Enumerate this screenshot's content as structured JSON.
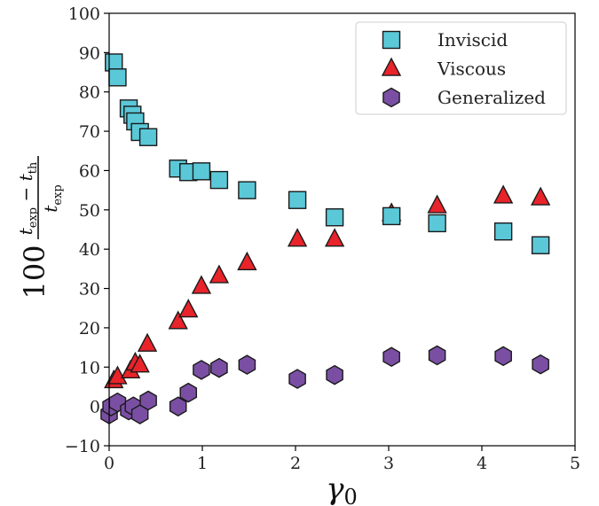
{
  "chart_data": {
    "type": "scatter",
    "xlabel": "γ0",
    "ylabel": "100 (t_exp − t_th) / t_exp",
    "xlim": [
      0,
      5
    ],
    "ylim": [
      -10,
      100
    ],
    "xticks": [
      "0",
      "1",
      "2",
      "3",
      "4",
      "5"
    ],
    "yticks": [
      "−10",
      "0",
      "10",
      "20",
      "30",
      "40",
      "50",
      "60",
      "70",
      "80",
      "90",
      "100"
    ],
    "grid": false,
    "legend_position": "top-right",
    "series": [
      {
        "name": "Inviscid",
        "marker": "square",
        "color": "#5BC8D8",
        "points": [
          [
            0.05,
            87.5
          ],
          [
            0.09,
            83.7
          ],
          [
            0.21,
            75.8
          ],
          [
            0.25,
            74.2
          ],
          [
            0.28,
            72.5
          ],
          [
            0.33,
            69.8
          ],
          [
            0.42,
            68.5
          ],
          [
            0.74,
            60.5
          ],
          [
            0.85,
            59.6
          ],
          [
            0.99,
            59.8
          ],
          [
            1.18,
            57.6
          ],
          [
            1.48,
            55.0
          ],
          [
            2.02,
            52.5
          ],
          [
            2.42,
            48.1
          ],
          [
            3.03,
            48.4
          ],
          [
            3.52,
            46.6
          ],
          [
            4.23,
            44.5
          ],
          [
            4.63,
            41.0
          ]
        ]
      },
      {
        "name": "Viscous",
        "marker": "triangle",
        "color": "#E8232A",
        "points": [
          [
            0.05,
            6.5
          ],
          [
            0.09,
            7.5
          ],
          [
            0.23,
            9.0
          ],
          [
            0.28,
            11.0
          ],
          [
            0.33,
            10.5
          ],
          [
            0.41,
            15.8
          ],
          [
            0.74,
            21.5
          ],
          [
            0.85,
            24.5
          ],
          [
            0.99,
            30.5
          ],
          [
            1.18,
            33.2
          ],
          [
            1.48,
            36.5
          ],
          [
            2.02,
            42.5
          ],
          [
            2.42,
            42.5
          ],
          [
            3.03,
            49.0
          ],
          [
            3.52,
            51.0
          ],
          [
            4.23,
            53.5
          ],
          [
            4.63,
            53.0
          ]
        ]
      },
      {
        "name": "Generalized",
        "marker": "hexagon",
        "color": "#7A4FA3",
        "points": [
          [
            0.0,
            -2.0
          ],
          [
            0.02,
            0.0
          ],
          [
            0.09,
            1.0
          ],
          [
            0.21,
            -1.0
          ],
          [
            0.26,
            0.0
          ],
          [
            0.33,
            -2.0
          ],
          [
            0.42,
            1.5
          ],
          [
            0.74,
            0.0
          ],
          [
            0.85,
            3.5
          ],
          [
            0.99,
            9.3
          ],
          [
            1.18,
            9.8
          ],
          [
            1.48,
            10.6
          ],
          [
            2.02,
            7.0
          ],
          [
            2.42,
            8.0
          ],
          [
            3.03,
            12.6
          ],
          [
            3.52,
            13.0
          ],
          [
            4.23,
            12.8
          ],
          [
            4.63,
            10.7
          ]
        ]
      }
    ]
  }
}
